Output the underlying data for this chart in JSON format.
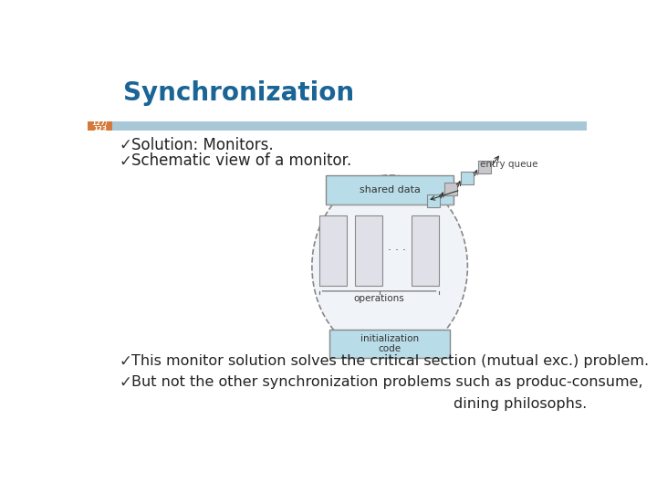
{
  "title": "Synchronization",
  "title_color": "#1a6496",
  "slide_num_bg": "#d4793b",
  "header_bar_color": "#a8c8d8",
  "background_color": "#ffffff",
  "bullet_color": "#222222",
  "checkmark_color": "#333333",
  "bullets": [
    "Solution: Monitors.",
    "Schematic view of a monitor."
  ],
  "bullets2": [
    "This monitor solution solves the critical section (mutual exc.) problem.",
    "But not the other synchronization problems such as produc-consume,"
  ],
  "bullet2_last": "                                                          dining philosophs.",
  "diagram": {
    "ellipse_fc": "#f0f4f8",
    "ellipse_ec": "#888888",
    "shared_data_fc": "#b8dce8",
    "shared_data_ec": "#888888",
    "shared_data_label": "shared data",
    "operations_label": "operations",
    "init_label": "initialization\ncode",
    "init_fc": "#b8dce8",
    "init_ec": "#888888",
    "inner_rect_fc": "#e0e0e8",
    "inner_rect_ec": "#888888",
    "dots_color": "#444444",
    "entry_queue_label": "entry queue",
    "q_blue_fc": "#b8dce8",
    "q_blue_ec": "#888888",
    "q_gray_fc": "#c8c8cc",
    "q_gray_ec": "#888888",
    "arrow_color": "#333333"
  }
}
